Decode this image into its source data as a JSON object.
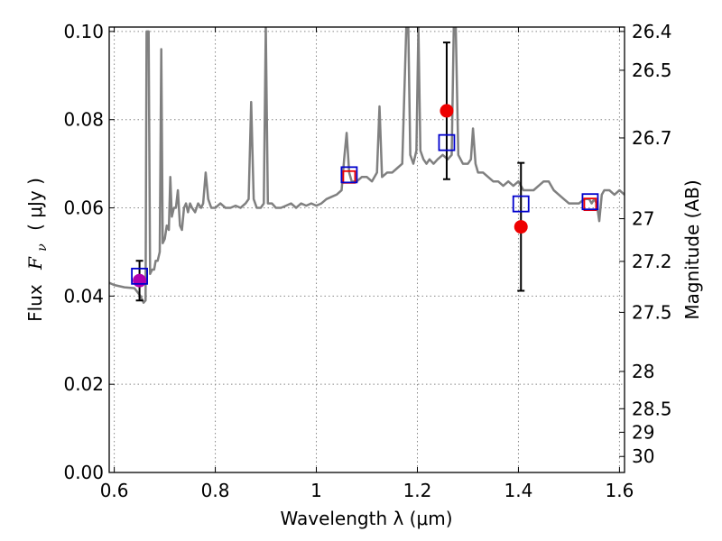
{
  "chart_data": {
    "type": "scatter",
    "xlabel": "Wavelength  λ (μm)",
    "ylabel_text": "Flux",
    "ylabel_math": "F",
    "ylabel_sub": "ν",
    "ylabel_unit": "( μJy )",
    "y2label": "Magnitude (AB)",
    "xlim": [
      0.59,
      1.61
    ],
    "ylim": [
      0.0,
      0.101
    ],
    "grid": true,
    "x_ticks": [
      0.6,
      0.8,
      1.0,
      1.2,
      1.4,
      1.6
    ],
    "x_tick_labels": [
      "0.6",
      "0.8",
      "1",
      "1.2",
      "1.4",
      "1.6"
    ],
    "y_ticks": [
      0.0,
      0.02,
      0.04,
      0.06,
      0.08,
      0.1
    ],
    "y_tick_labels": [
      "0.00",
      "0.02",
      "0.04",
      "0.06",
      "0.08",
      "0.10"
    ],
    "y2_ticks": [
      26.4,
      26.5,
      26.7,
      27,
      27.2,
      27.5,
      28,
      28.5,
      29,
      30
    ],
    "y2_tick_labels": [
      "26.4",
      "26.5",
      "26.7",
      "27",
      "27.2",
      "27.5",
      "28",
      "28.5",
      "29",
      "30"
    ],
    "colors": {
      "spectrum": "#808080",
      "observed": "#ee0000",
      "model_box": "#0000cc",
      "red_box": "#ee0000",
      "errorbar": "#000000",
      "grid": "#888888"
    },
    "series": [
      {
        "marker": "line",
        "points": [
          [
            0.59,
            0.043
          ],
          [
            0.6,
            0.0425
          ],
          [
            0.62,
            0.042
          ],
          [
            0.64,
            0.0418
          ],
          [
            0.652,
            0.04
          ],
          [
            0.658,
            0.0385
          ],
          [
            0.662,
            0.039
          ],
          [
            0.664,
            0.1
          ],
          [
            0.668,
            0.1
          ],
          [
            0.671,
            0.045
          ],
          [
            0.675,
            0.046
          ],
          [
            0.679,
            0.046
          ],
          [
            0.682,
            0.048
          ],
          [
            0.686,
            0.048
          ],
          [
            0.69,
            0.05
          ],
          [
            0.693,
            0.096
          ],
          [
            0.696,
            0.052
          ],
          [
            0.7,
            0.053
          ],
          [
            0.704,
            0.056
          ],
          [
            0.708,
            0.055
          ],
          [
            0.711,
            0.067
          ],
          [
            0.714,
            0.058
          ],
          [
            0.718,
            0.06
          ],
          [
            0.722,
            0.06
          ],
          [
            0.726,
            0.064
          ],
          [
            0.73,
            0.056
          ],
          [
            0.734,
            0.055
          ],
          [
            0.738,
            0.06
          ],
          [
            0.742,
            0.061
          ],
          [
            0.746,
            0.059
          ],
          [
            0.75,
            0.061
          ],
          [
            0.754,
            0.06
          ],
          [
            0.76,
            0.059
          ],
          [
            0.766,
            0.061
          ],
          [
            0.772,
            0.06
          ],
          [
            0.776,
            0.061
          ],
          [
            0.781,
            0.068
          ],
          [
            0.786,
            0.062
          ],
          [
            0.792,
            0.06
          ],
          [
            0.8,
            0.06
          ],
          [
            0.81,
            0.061
          ],
          [
            0.82,
            0.06
          ],
          [
            0.83,
            0.06
          ],
          [
            0.84,
            0.0605
          ],
          [
            0.85,
            0.06
          ],
          [
            0.86,
            0.061
          ],
          [
            0.866,
            0.062
          ],
          [
            0.871,
            0.084
          ],
          [
            0.876,
            0.062
          ],
          [
            0.882,
            0.06
          ],
          [
            0.89,
            0.06
          ],
          [
            0.896,
            0.061
          ],
          [
            0.9,
            0.101
          ],
          [
            0.904,
            0.061
          ],
          [
            0.912,
            0.061
          ],
          [
            0.92,
            0.06
          ],
          [
            0.93,
            0.06
          ],
          [
            0.94,
            0.0605
          ],
          [
            0.95,
            0.061
          ],
          [
            0.96,
            0.06
          ],
          [
            0.97,
            0.061
          ],
          [
            0.98,
            0.0605
          ],
          [
            0.99,
            0.061
          ],
          [
            1.0,
            0.0605
          ],
          [
            1.01,
            0.061
          ],
          [
            1.02,
            0.062
          ],
          [
            1.03,
            0.0625
          ],
          [
            1.04,
            0.063
          ],
          [
            1.05,
            0.064
          ],
          [
            1.055,
            0.071
          ],
          [
            1.06,
            0.077
          ],
          [
            1.065,
            0.068
          ],
          [
            1.07,
            0.066
          ],
          [
            1.08,
            0.066
          ],
          [
            1.09,
            0.067
          ],
          [
            1.1,
            0.067
          ],
          [
            1.11,
            0.066
          ],
          [
            1.12,
            0.068
          ],
          [
            1.125,
            0.083
          ],
          [
            1.13,
            0.067
          ],
          [
            1.14,
            0.068
          ],
          [
            1.15,
            0.068
          ],
          [
            1.16,
            0.069
          ],
          [
            1.17,
            0.07
          ],
          [
            1.178,
            0.101
          ],
          [
            1.182,
            0.101
          ],
          [
            1.186,
            0.072
          ],
          [
            1.192,
            0.07
          ],
          [
            1.198,
            0.073
          ],
          [
            1.202,
            0.101
          ],
          [
            1.206,
            0.073
          ],
          [
            1.212,
            0.071
          ],
          [
            1.218,
            0.07
          ],
          [
            1.224,
            0.071
          ],
          [
            1.232,
            0.07
          ],
          [
            1.24,
            0.071
          ],
          [
            1.25,
            0.072
          ],
          [
            1.26,
            0.071
          ],
          [
            1.268,
            0.072
          ],
          [
            1.272,
            0.101
          ],
          [
            1.276,
            0.101
          ],
          [
            1.281,
            0.072
          ],
          [
            1.29,
            0.07
          ],
          [
            1.3,
            0.07
          ],
          [
            1.306,
            0.071
          ],
          [
            1.31,
            0.078
          ],
          [
            1.315,
            0.07
          ],
          [
            1.32,
            0.068
          ],
          [
            1.33,
            0.068
          ],
          [
            1.34,
            0.067
          ],
          [
            1.35,
            0.066
          ],
          [
            1.36,
            0.066
          ],
          [
            1.37,
            0.065
          ],
          [
            1.38,
            0.066
          ],
          [
            1.39,
            0.065
          ],
          [
            1.4,
            0.066
          ],
          [
            1.41,
            0.064
          ],
          [
            1.42,
            0.064
          ],
          [
            1.43,
            0.064
          ],
          [
            1.44,
            0.065
          ],
          [
            1.45,
            0.066
          ],
          [
            1.46,
            0.066
          ],
          [
            1.47,
            0.064
          ],
          [
            1.48,
            0.063
          ],
          [
            1.49,
            0.062
          ],
          [
            1.5,
            0.061
          ],
          [
            1.51,
            0.061
          ],
          [
            1.52,
            0.061
          ],
          [
            1.53,
            0.062
          ],
          [
            1.54,
            0.062
          ],
          [
            1.545,
            0.061
          ],
          [
            1.55,
            0.062
          ],
          [
            1.555,
            0.061
          ],
          [
            1.56,
            0.057
          ],
          [
            1.565,
            0.063
          ],
          [
            1.57,
            0.064
          ],
          [
            1.58,
            0.064
          ],
          [
            1.59,
            0.063
          ],
          [
            1.6,
            0.064
          ],
          [
            1.61,
            0.063
          ]
        ]
      },
      {
        "marker": "filled-circle",
        "points": [
          [
            0.65,
            0.0435
          ],
          [
            1.258,
            0.082
          ],
          [
            1.405,
            0.0557
          ]
        ],
        "yerr": [
          0.0045,
          0.0155,
          0.0145
        ]
      },
      {
        "marker": "open-square",
        "points": [
          [
            0.65,
            0.0445
          ],
          [
            1.065,
            0.0675
          ],
          [
            1.258,
            0.0748
          ],
          [
            1.405,
            0.0609
          ],
          [
            1.542,
            0.0614
          ]
        ]
      },
      {
        "marker": "open-square-small",
        "points": [
          [
            1.065,
            0.067
          ],
          [
            1.542,
            0.0608
          ]
        ]
      }
    ]
  }
}
